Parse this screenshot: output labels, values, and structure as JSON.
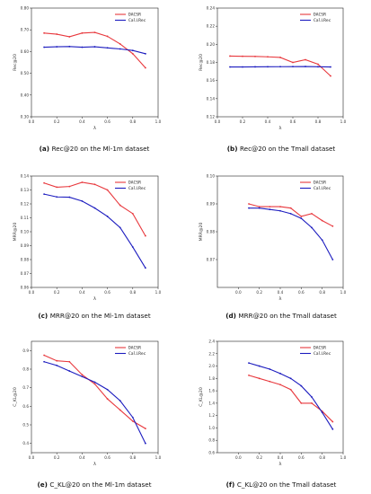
{
  "charts": [
    {
      "type": "line",
      "caption_label": "(a)",
      "caption_text": "Rec@20 on the Ml-1m dataset",
      "xlabel": "λ",
      "ylabel": "Rec@20",
      "xlim": [
        0.0,
        1.0
      ],
      "ylim": [
        0.3,
        0.8
      ],
      "xticks": [
        "0.0",
        "0.2",
        "0.4",
        "0.6",
        "0.8",
        "1.0"
      ],
      "yticks": [
        "0.30",
        "0.40",
        "0.50",
        "0.60",
        "0.70",
        "0.80"
      ],
      "xtick_values": [
        0.0,
        0.2,
        0.4,
        0.6,
        0.8,
        1.0
      ],
      "ytick_values": [
        0.3,
        0.4,
        0.5,
        0.6,
        0.7,
        0.8
      ],
      "legend": "top-right",
      "series": [
        {
          "name": "DACSR",
          "color": "#e8383d",
          "x": [
            0.1,
            0.2,
            0.3,
            0.4,
            0.5,
            0.6,
            0.7,
            0.8,
            0.9
          ],
          "y": [
            0.685,
            0.68,
            0.668,
            0.685,
            0.688,
            0.67,
            0.635,
            0.59,
            0.525
          ]
        },
        {
          "name": "CaliRec",
          "color": "#1c1cbf",
          "x": [
            0.1,
            0.2,
            0.3,
            0.4,
            0.5,
            0.6,
            0.7,
            0.8,
            0.9
          ],
          "y": [
            0.62,
            0.622,
            0.623,
            0.62,
            0.622,
            0.617,
            0.612,
            0.605,
            0.59
          ]
        }
      ]
    },
    {
      "type": "line",
      "caption_label": "(b)",
      "caption_text": "Rec@20 on the Tmall dataset",
      "xlabel": "λ",
      "ylabel": "Rec@20",
      "xlim": [
        0.0,
        1.0
      ],
      "ylim": [
        0.12,
        0.24
      ],
      "xticks": [
        "0.0",
        "0.2",
        "0.4",
        "0.6",
        "0.8",
        "1.0"
      ],
      "yticks": [
        "0.12",
        "0.14",
        "0.16",
        "0.18",
        "0.20",
        "0.22",
        "0.24"
      ],
      "xtick_values": [
        0.0,
        0.2,
        0.4,
        0.6,
        0.8,
        1.0
      ],
      "ytick_values": [
        0.12,
        0.14,
        0.16,
        0.18,
        0.2,
        0.22,
        0.24
      ],
      "legend": "top-right",
      "series": [
        {
          "name": "DACSR",
          "color": "#e8383d",
          "x": [
            0.1,
            0.2,
            0.3,
            0.4,
            0.5,
            0.6,
            0.7,
            0.8,
            0.9
          ],
          "y": [
            0.187,
            0.1868,
            0.1866,
            0.1862,
            0.1855,
            0.18,
            0.183,
            0.178,
            0.165
          ]
        },
        {
          "name": "CaliRec",
          "color": "#1c1cbf",
          "x": [
            0.1,
            0.2,
            0.3,
            0.4,
            0.5,
            0.6,
            0.7,
            0.8,
            0.9
          ],
          "y": [
            0.175,
            0.175,
            0.1751,
            0.1752,
            0.1753,
            0.1754,
            0.1755,
            0.1752,
            0.175
          ]
        }
      ]
    },
    {
      "type": "line",
      "caption_label": "(c)",
      "caption_text": "MRR@20 on the Ml-1m dataset",
      "xlabel": "λ",
      "ylabel": "MRR@20",
      "xlim": [
        0.0,
        1.0
      ],
      "ylim": [
        0.06,
        0.14
      ],
      "xticks": [
        "0.0",
        "0.2",
        "0.4",
        "0.6",
        "0.8",
        "1.0"
      ],
      "yticks": [
        "0.06",
        "0.07",
        "0.08",
        "0.09",
        "0.10",
        "0.11",
        "0.12",
        "0.13",
        "0.14"
      ],
      "xtick_values": [
        0.0,
        0.2,
        0.4,
        0.6,
        0.8,
        1.0
      ],
      "ytick_values": [
        0.06,
        0.07,
        0.08,
        0.09,
        0.1,
        0.11,
        0.12,
        0.13,
        0.14
      ],
      "legend": "top-right",
      "series": [
        {
          "name": "DACSR",
          "color": "#e8383d",
          "x": [
            0.1,
            0.2,
            0.3,
            0.4,
            0.5,
            0.6,
            0.7,
            0.8,
            0.9
          ],
          "y": [
            0.135,
            0.132,
            0.1325,
            0.1355,
            0.134,
            0.13,
            0.119,
            0.113,
            0.097
          ]
        },
        {
          "name": "CaliRec",
          "color": "#1c1cbf",
          "x": [
            0.1,
            0.2,
            0.3,
            0.4,
            0.5,
            0.6,
            0.7,
            0.8,
            0.9
          ],
          "y": [
            0.127,
            0.125,
            0.1248,
            0.122,
            0.117,
            0.111,
            0.103,
            0.089,
            0.074
          ]
        }
      ]
    },
    {
      "type": "line",
      "caption_label": "(d)",
      "caption_text": "MRR@20 on the Tmall dataset",
      "xlabel": "λ",
      "ylabel": "MRR@20",
      "xlim": [
        -0.2,
        1.0
      ],
      "ylim": [
        0.06,
        0.1
      ],
      "xticks": [
        "0.0",
        "0.2",
        "0.4",
        "0.6",
        "0.8",
        "1.0"
      ],
      "yticks": [
        "0.07",
        "0.08",
        "0.09",
        "0.10"
      ],
      "xtick_values": [
        0.0,
        0.2,
        0.4,
        0.6,
        0.8,
        1.0
      ],
      "ytick_values": [
        0.07,
        0.08,
        0.09,
        0.1
      ],
      "legend": "top-right",
      "series": [
        {
          "name": "DACSR",
          "color": "#e8383d",
          "x": [
            0.1,
            0.2,
            0.3,
            0.4,
            0.5,
            0.6,
            0.7,
            0.8,
            0.9
          ],
          "y": [
            0.09,
            0.089,
            0.089,
            0.089,
            0.0885,
            0.0855,
            0.0865,
            0.084,
            0.082
          ]
        },
        {
          "name": "CaliRec",
          "color": "#1c1cbf",
          "x": [
            0.1,
            0.2,
            0.3,
            0.4,
            0.5,
            0.6,
            0.7,
            0.8,
            0.9
          ],
          "y": [
            0.0885,
            0.0885,
            0.088,
            0.0875,
            0.0865,
            0.0848,
            0.0815,
            0.077,
            0.07
          ]
        }
      ]
    },
    {
      "type": "line",
      "caption_label": "(e)",
      "caption_text": "C_KL@20 on the Ml-1m dataset",
      "xlabel": "λ",
      "ylabel": "C_KL@20",
      "xlim": [
        0.0,
        1.0
      ],
      "ylim": [
        0.35,
        0.95
      ],
      "xticks": [
        "0.0",
        "0.2",
        "0.4",
        "0.6",
        "0.8",
        "1.0"
      ],
      "yticks": [
        "0.4",
        "0.5",
        "0.6",
        "0.7",
        "0.8",
        "0.9"
      ],
      "xtick_values": [
        0.0,
        0.2,
        0.4,
        0.6,
        0.8,
        1.0
      ],
      "ytick_values": [
        0.4,
        0.5,
        0.6,
        0.7,
        0.8,
        0.9
      ],
      "legend": "top-right",
      "series": [
        {
          "name": "DACSR",
          "color": "#e8383d",
          "x": [
            0.1,
            0.2,
            0.3,
            0.4,
            0.5,
            0.6,
            0.7,
            0.8,
            0.9
          ],
          "y": [
            0.875,
            0.845,
            0.84,
            0.77,
            0.72,
            0.64,
            0.58,
            0.52,
            0.48
          ]
        },
        {
          "name": "CaliRec",
          "color": "#1c1cbf",
          "x": [
            0.1,
            0.2,
            0.3,
            0.4,
            0.5,
            0.6,
            0.7,
            0.8,
            0.9
          ],
          "y": [
            0.84,
            0.82,
            0.79,
            0.76,
            0.73,
            0.69,
            0.63,
            0.54,
            0.4
          ]
        }
      ]
    },
    {
      "type": "line",
      "caption_label": "(f)",
      "caption_text": "C_KL@20 on the Tmall dataset",
      "xlabel": "λ",
      "ylabel": "C_KL@20",
      "xlim": [
        -0.2,
        1.0
      ],
      "ylim": [
        0.6,
        2.4
      ],
      "xticks": [
        "0.0",
        "0.2",
        "0.4",
        "0.6",
        "0.8",
        "1.0"
      ],
      "yticks": [
        "0.6",
        "0.8",
        "1.0",
        "1.2",
        "1.4",
        "1.6",
        "1.8",
        "2.0",
        "2.2",
        "2.4"
      ],
      "xtick_values": [
        0.0,
        0.2,
        0.4,
        0.6,
        0.8,
        1.0
      ],
      "ytick_values": [
        0.6,
        0.8,
        1.0,
        1.2,
        1.4,
        1.6,
        1.8,
        2.0,
        2.2,
        2.4
      ],
      "legend": "top-right",
      "series": [
        {
          "name": "DACSR",
          "color": "#e8383d",
          "x": [
            0.1,
            0.2,
            0.3,
            0.4,
            0.5,
            0.6,
            0.7,
            0.8,
            0.9
          ],
          "y": [
            1.85,
            1.8,
            1.75,
            1.7,
            1.62,
            1.4,
            1.4,
            1.27,
            1.1
          ]
        },
        {
          "name": "CaliRec",
          "color": "#1c1cbf",
          "x": [
            0.1,
            0.2,
            0.3,
            0.4,
            0.5,
            0.6,
            0.7,
            0.8,
            0.9
          ],
          "y": [
            2.05,
            2.0,
            1.95,
            1.88,
            1.8,
            1.68,
            1.5,
            1.25,
            0.98
          ]
        }
      ]
    }
  ]
}
